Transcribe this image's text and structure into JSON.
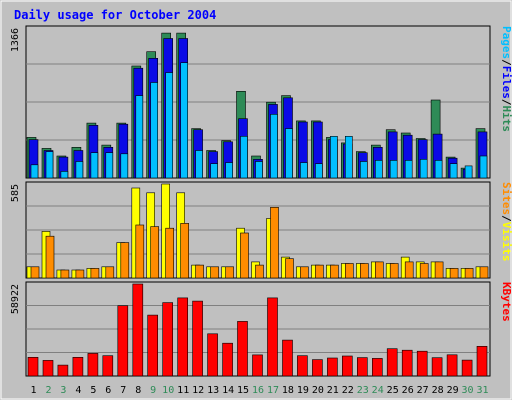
{
  "chart_data": {
    "type": "bar",
    "title": "Daily usage for October 2004",
    "categories": [
      "1",
      "2",
      "3",
      "4",
      "5",
      "6",
      "7",
      "8",
      "9",
      "10",
      "11",
      "12",
      "13",
      "14",
      "15",
      "16",
      "17",
      "18",
      "19",
      "20",
      "21",
      "22",
      "23",
      "24",
      "25",
      "26",
      "27",
      "28",
      "29",
      "30",
      "31"
    ],
    "weekend_days": [
      "2",
      "3",
      "9",
      "10",
      "16",
      "17",
      "23",
      "24",
      "30",
      "31"
    ],
    "panels": [
      {
        "name": "top",
        "ymax_label": "1366",
        "ylim": [
          0,
          1366
        ],
        "series": [
          {
            "name": "Pages",
            "color": "#1bc71b",
            "values": [
              0,
              0,
              0,
              0,
              0,
              0,
              0,
              0,
              0,
              0,
              0,
              0,
              0,
              0,
              0,
              0,
              0,
              0,
              0,
              0,
              0,
              0,
              0,
              0,
              0,
              0,
              0,
              0,
              0,
              0,
              0
            ]
          },
          {
            "name": "Hits",
            "color": "#2e8b57",
            "values": [
              370,
              270,
              200,
              280,
              500,
              300,
              500,
              1020,
              1150,
              1320,
              1320,
              450,
              250,
              340,
              790,
              200,
              690,
              750,
              520,
              520,
              370,
              320,
              240,
              300,
              440,
              410,
              360,
              710,
              190,
              90,
              450
            ]
          },
          {
            "name": "Files",
            "color": "#0a0ae6",
            "values": [
              350,
              250,
              190,
              250,
              480,
              280,
              490,
              1000,
              1090,
              1270,
              1270,
              440,
              240,
              330,
              540,
              170,
              670,
              730,
              510,
              510,
              350,
              310,
              230,
              280,
              420,
              390,
              350,
              400,
              180,
              80,
              420
            ]
          },
          {
            "name": "Pages",
            "color": "#00bfff",
            "values": [
              120,
              240,
              60,
              150,
              230,
              230,
              220,
              750,
              870,
              960,
              1050,
              250,
              130,
              140,
              380,
              150,
              580,
              450,
              140,
              130,
              380,
              380,
              150,
              160,
              160,
              160,
              170,
              160,
              130,
              110,
              200
            ]
          }
        ]
      },
      {
        "name": "middle",
        "ymax_label": "585",
        "ylim": [
          0,
          585
        ],
        "series": [
          {
            "name": "Visits",
            "color": "#ffff00",
            "values": [
              70,
              290,
              50,
              50,
              60,
              70,
              220,
              560,
              530,
              585,
              530,
              80,
              70,
              70,
              310,
              100,
              370,
              130,
              70,
              80,
              80,
              90,
              90,
              100,
              90,
              130,
              100,
              100,
              60,
              60,
              70
            ]
          },
          {
            "name": "Sites",
            "color": "#ff8c00",
            "values": [
              70,
              260,
              50,
              50,
              60,
              70,
              220,
              330,
              320,
              310,
              340,
              80,
              70,
              70,
              280,
              80,
              440,
              120,
              70,
              80,
              80,
              90,
              90,
              100,
              90,
              100,
              90,
              100,
              60,
              60,
              70
            ]
          }
        ]
      },
      {
        "name": "bottom",
        "ymax_label": "58922",
        "ylim": [
          0,
          58922
        ],
        "series": [
          {
            "name": "KBytes",
            "color": "#ff0000",
            "values": [
              12000,
              10000,
              7000,
              12000,
              14500,
              13000,
              45000,
              58922,
              39000,
              47000,
              50000,
              48000,
              27000,
              21000,
              35000,
              13500,
              50000,
              23000,
              13000,
              10500,
              11500,
              12800,
              11800,
              11300,
              17500,
              16500,
              15900,
              11700,
              13600,
              10200,
              19000
            ]
          }
        ]
      }
    ],
    "right_labels": {
      "top": [
        {
          "text": "Pages",
          "color": "#00bfff"
        },
        {
          "text": "/",
          "color": "#000000"
        },
        {
          "text": "Files",
          "color": "#0000ff"
        },
        {
          "text": "/",
          "color": "#000000"
        },
        {
          "text": "Hits",
          "color": "#2e8b57"
        }
      ],
      "middle": [
        {
          "text": "Sites",
          "color": "#ff8c00"
        },
        {
          "text": "/",
          "color": "#000000"
        },
        {
          "text": "Visits",
          "color": "#ffff00"
        }
      ],
      "bottom": [
        {
          "text": "KBytes",
          "color": "#ff0000"
        }
      ]
    },
    "colors": {
      "background": "#c0c0c0",
      "plot_background": "#c0c0c0",
      "grid": "#808080",
      "title": "#0000ff",
      "weekday_label": "#000000",
      "weekend_label": "#2e8b57"
    },
    "grid": true
  }
}
